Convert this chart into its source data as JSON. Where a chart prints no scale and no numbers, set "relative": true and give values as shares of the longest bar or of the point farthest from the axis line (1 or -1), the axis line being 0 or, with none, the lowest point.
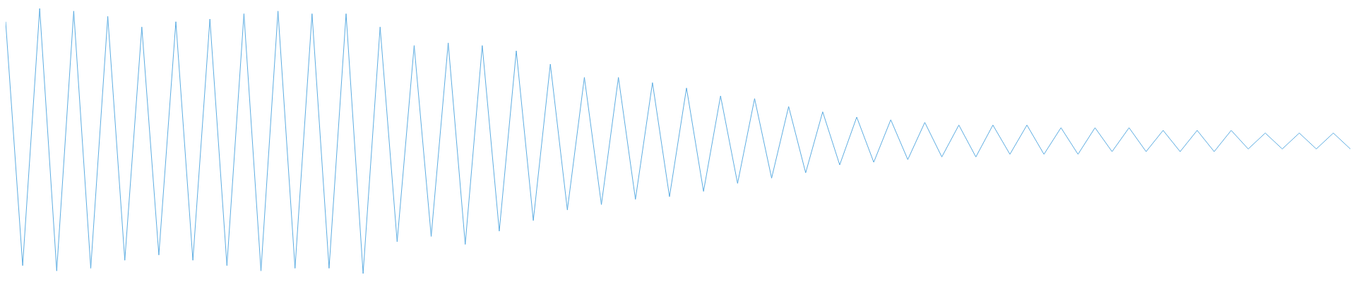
{
  "chart_data": {
    "type": "line",
    "relative": true,
    "color": "#5dade2",
    "categories": [
      null,
      null,
      null,
      null,
      null,
      null,
      null,
      null,
      null,
      null,
      null,
      null,
      null,
      null,
      null,
      null,
      null,
      null,
      null,
      null,
      null,
      null,
      null,
      null,
      null,
      null,
      null,
      null,
      null,
      null,
      null,
      null,
      null,
      null,
      null,
      null,
      null,
      null,
      null,
      null,
      null,
      null,
      null,
      null,
      null,
      null,
      null,
      null,
      null,
      null,
      null,
      null,
      null,
      null,
      null,
      null,
      null,
      null,
      null,
      null,
      null,
      null,
      null,
      null,
      null,
      null,
      null,
      null,
      null,
      null,
      null,
      null,
      null,
      null,
      null,
      null,
      null,
      null,
      null,
      null
    ],
    "values": [
      0.95,
      0.03,
      1,
      0.01,
      0.99,
      0.02,
      0.97,
      0.05,
      0.93,
      0.07,
      0.95,
      0.05,
      0.96,
      0.03,
      0.98,
      0.01,
      0.99,
      0.02,
      0.98,
      0.02,
      0.98,
      0,
      0.93,
      0.12,
      0.86,
      0.14,
      0.87,
      0.11,
      0.86,
      0.16,
      0.84,
      0.2,
      0.79,
      0.24,
      0.74,
      0.26,
      0.74,
      0.28,
      0.72,
      0.29,
      0.7,
      0.31,
      0.67,
      0.34,
      0.66,
      0.36,
      0.63,
      0.38,
      0.61,
      0.41,
      0.59,
      0.42,
      0.58,
      0.43,
      0.57,
      0.44,
      0.56,
      0.44,
      0.56,
      0.45,
      0.56,
      0.45,
      0.55,
      0.45,
      0.55,
      0.46,
      0.55,
      0.46,
      0.54,
      0.46,
      0.54,
      0.46,
      0.54,
      0.47,
      0.53,
      0.47,
      0.53,
      0.47,
      0.53,
      0.47
    ],
    "legend": false,
    "marker": "none",
    "line_style": "solid"
  }
}
